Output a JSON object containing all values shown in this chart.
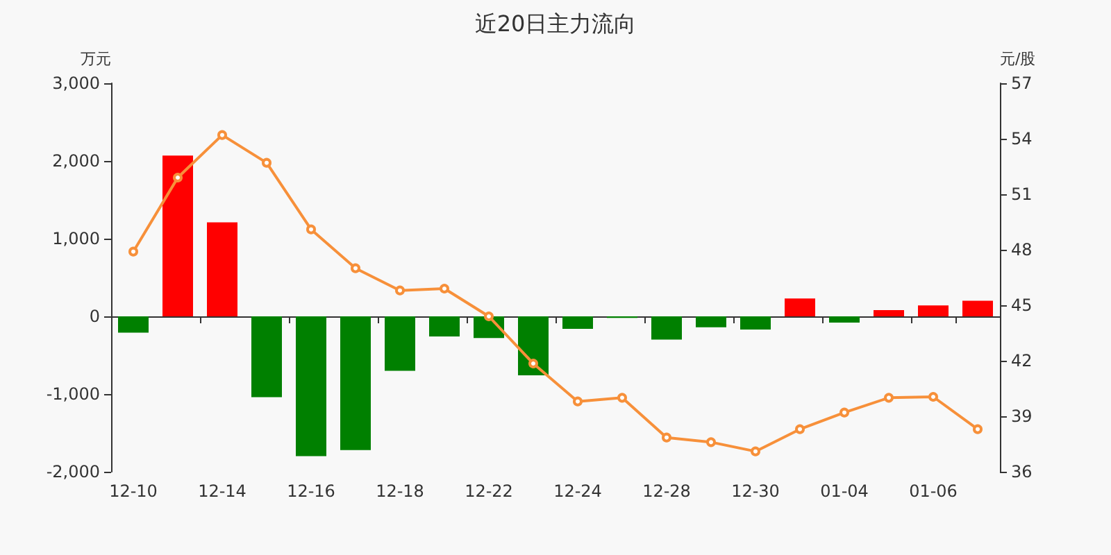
{
  "chart_data": {
    "type": "bar",
    "title": "近20日主力流向",
    "ylabel": "万元",
    "y2label": "元/股",
    "categories": [
      "12-10",
      null,
      "12-14",
      null,
      "12-16",
      null,
      "12-18",
      null,
      "12-22",
      null,
      "12-24",
      null,
      "12-28",
      null,
      "12-30",
      null,
      "01-04",
      null,
      "01-06",
      null
    ],
    "series": [
      {
        "values": [
          -210,
          2070,
          1210,
          -1040,
          -1800,
          -1720,
          -700,
          -260,
          -280,
          -760,
          -160,
          -20,
          -300,
          -140,
          -170,
          230,
          -80,
          80,
          140,
          200
        ],
        "colors": [
          "#008000",
          "#ff0000",
          "#ff0000",
          "#008000",
          "#008000",
          "#008000",
          "#008000",
          "#008000",
          "#008000",
          "#008000",
          "#008000",
          "#008000",
          "#008000",
          "#008000",
          "#008000",
          "#ff0000",
          "#008000",
          "#ff0000",
          "#ff0000",
          "#ff0000"
        ]
      },
      {
        "type": "line",
        "axis": "y2",
        "color": "#f7903a",
        "marker": "circle",
        "values": [
          47.9,
          51.9,
          54.2,
          52.7,
          49.1,
          47.0,
          45.8,
          45.9,
          44.4,
          41.85,
          39.8,
          40.0,
          37.85,
          37.6,
          37.1,
          38.3,
          39.2,
          40.0,
          40.05,
          38.3
        ]
      }
    ],
    "ylim": [
      -2000,
      3000
    ],
    "yticks": [
      {
        "value": -2000,
        "label": "-2,000"
      },
      {
        "value": -1000,
        "label": "-1,000"
      },
      0,
      {
        "value": 1000,
        "label": "1,000"
      },
      {
        "value": 2000,
        "label": "2,000"
      },
      {
        "value": 3000,
        "label": "3,000"
      }
    ],
    "y2lim": [
      36,
      57
    ],
    "y2ticks": [
      36,
      39,
      42,
      45,
      48,
      51,
      54,
      57
    ]
  }
}
